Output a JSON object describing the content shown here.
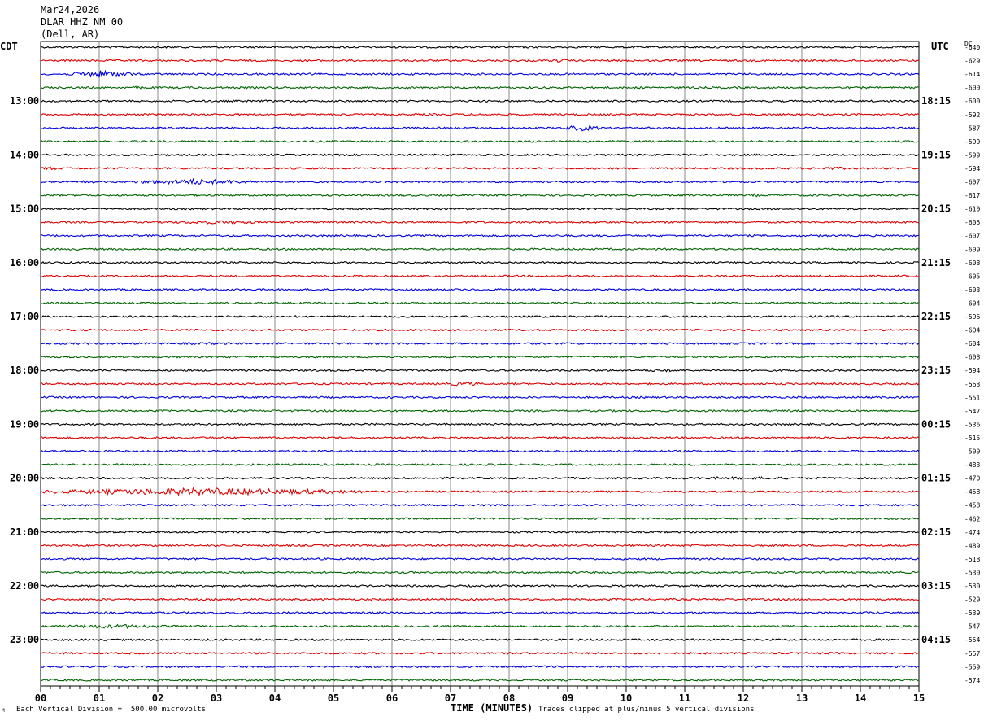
{
  "header": {
    "date": "Mar24,2026",
    "station": "DLAR HHZ NM 00",
    "location": "(Dell, AR)"
  },
  "axis": {
    "left_label": "CDT",
    "right_label": "UTC",
    "dc_label": "DC",
    "xlabel": "TIME (MINUTES)",
    "scale_note": "Each Vertical Division =  500.00 microvolts",
    "clip_note": "Traces clipped at plus/minus 5 vertical divisions",
    "corner_mark": "M"
  },
  "colors": {
    "trace_cycle": [
      "#000000",
      "#e00000",
      "#0000e0",
      "#006400"
    ],
    "grid": "#000000",
    "background": "#ffffff"
  },
  "chart_data": {
    "type": "line",
    "subtype": "helicorder",
    "xlim": [
      0,
      15
    ],
    "x_ticks": [
      "00",
      "01",
      "02",
      "03",
      "04",
      "05",
      "06",
      "07",
      "08",
      "09",
      "10",
      "11",
      "12",
      "13",
      "14",
      "15"
    ],
    "trace_count": 48,
    "left_hour_labels": [
      "13:00",
      "14:00",
      "15:00",
      "16:00",
      "17:00",
      "18:00",
      "19:00",
      "20:00",
      "21:00",
      "22:00",
      "23:00"
    ],
    "right_hour_labels": [
      "18:15",
      "19:15",
      "20:15",
      "21:15",
      "22:15",
      "23:15",
      "00:15",
      "01:15",
      "02:15",
      "03:15",
      "04:15"
    ],
    "dc_offsets": [
      -640,
      -629,
      -614,
      -600,
      -600,
      -592,
      -587,
      -599,
      -599,
      -594,
      -607,
      -617,
      -610,
      -605,
      -607,
      -609,
      -608,
      -605,
      -603,
      -604,
      -596,
      -604,
      -604,
      -608,
      -594,
      -563,
      -551,
      -547,
      -536,
      -515,
      -500,
      -483,
      -470,
      -458,
      -458,
      -462,
      -474,
      -489,
      -518,
      -530,
      -530,
      -529,
      -539,
      -547,
      -554,
      -557,
      -559,
      -574
    ],
    "events": [
      {
        "trace": 1,
        "start_min": 8.6,
        "end_min": 9.1,
        "amp": 2.0
      },
      {
        "trace": 2,
        "start_min": 0.5,
        "end_min": 1.6,
        "amp": 4.5
      },
      {
        "trace": 3,
        "start_min": 1.5,
        "end_min": 1.9,
        "amp": 2.0
      },
      {
        "trace": 6,
        "start_min": 8.9,
        "end_min": 9.6,
        "amp": 3.5
      },
      {
        "trace": 9,
        "start_min": 0.0,
        "end_min": 0.3,
        "amp": 2.5
      },
      {
        "trace": 9,
        "start_min": 13.0,
        "end_min": 13.9,
        "amp": 2.0
      },
      {
        "trace": 10,
        "start_min": 0.6,
        "end_min": 1.0,
        "amp": 2.0
      },
      {
        "trace": 10,
        "start_min": 1.5,
        "end_min": 3.7,
        "amp": 3.5
      },
      {
        "trace": 11,
        "start_min": 12.1,
        "end_min": 12.3,
        "amp": 2.0
      },
      {
        "trace": 13,
        "start_min": 1.8,
        "end_min": 4.3,
        "amp": 2.0
      },
      {
        "trace": 22,
        "start_min": 1.5,
        "end_min": 4.0,
        "amp": 1.5
      },
      {
        "trace": 24,
        "start_min": 10.0,
        "end_min": 11.2,
        "amp": 1.8
      },
      {
        "trace": 25,
        "start_min": 6.8,
        "end_min": 7.6,
        "amp": 2.5
      },
      {
        "trace": 29,
        "start_min": 12.9,
        "end_min": 13.4,
        "amp": 1.5
      },
      {
        "trace": 32,
        "start_min": 9.0,
        "end_min": 15.0,
        "amp": 1.6
      },
      {
        "trace": 33,
        "start_min": 0.0,
        "end_min": 5.5,
        "amp": 4.5
      },
      {
        "trace": 38,
        "start_min": 5.2,
        "end_min": 5.6,
        "amp": 1.5
      },
      {
        "trace": 42,
        "start_min": 13.5,
        "end_min": 15.0,
        "amp": 1.6
      },
      {
        "trace": 43,
        "start_min": 0.0,
        "end_min": 2.5,
        "amp": 2.5
      }
    ]
  }
}
